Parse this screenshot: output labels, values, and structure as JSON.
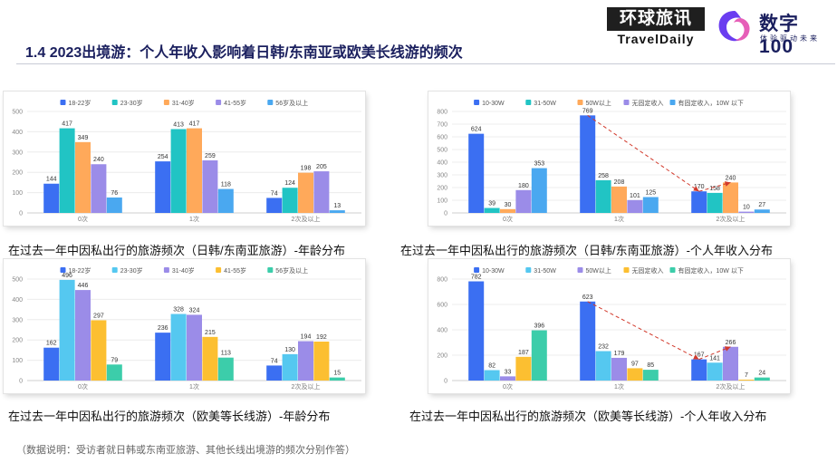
{
  "header": {
    "title": "1.4 2023出境游：个人年收入影响着日韩/东南亚或欧美长线游的频次",
    "logo_tv_cn": "环球旅讯",
    "logo_tv_en": "TravelDaily",
    "logo_sz_main": "数字100",
    "logo_sz_sub": "体验驱动未来"
  },
  "footnote": "（数据说明：受访者就日韩或东南亚旅游、其他长线出境游的频次分别作答）",
  "chart_data": [
    {
      "type": "bar",
      "caption": "在过去一年中因私出行的旅游频次（日韩/东南亚旅游）-年龄分布",
      "categories": [
        "0次",
        "1次",
        "2次及以上"
      ],
      "y_ticks": [
        0,
        100,
        200,
        300,
        400,
        500
      ],
      "ylim": [
        0,
        500
      ],
      "legend_position": "top",
      "series": [
        {
          "name": "18-22岁",
          "color": "#3b6ff2",
          "values": [
            144,
            254,
            74
          ]
        },
        {
          "name": "23-30岁",
          "color": "#21c4c4",
          "values": [
            417,
            413,
            124
          ]
        },
        {
          "name": "31-40岁",
          "color": "#ffa95a",
          "values": [
            349,
            417,
            198
          ]
        },
        {
          "name": "41-55岁",
          "color": "#9b8ce8",
          "values": [
            240,
            259,
            205
          ]
        },
        {
          "name": "56岁及以上",
          "color": "#4aa8f0",
          "values": [
            76,
            118,
            13
          ]
        }
      ]
    },
    {
      "type": "bar",
      "caption": "在过去一年中因私出行的旅游频次（日韩/东南亚旅游）-个人年收入分布",
      "categories": [
        "0次",
        "1次",
        "2次及以上"
      ],
      "y_ticks": [
        0,
        100,
        200,
        300,
        400,
        500,
        600,
        700,
        800
      ],
      "ylim": [
        0,
        800
      ],
      "legend_position": "top",
      "trend_arrows": [
        {
          "from_series": 0,
          "from_cat": 1,
          "to_series": 0,
          "to_cat": 2
        },
        {
          "from_series": 0,
          "from_cat": 2,
          "to_series": 2,
          "to_cat": 2
        }
      ],
      "series": [
        {
          "name": "10-30W",
          "color": "#3b6ff2",
          "values": [
            624,
            769,
            170
          ]
        },
        {
          "name": "31-50W",
          "color": "#21c4c4",
          "values": [
            39,
            258,
            158
          ]
        },
        {
          "name": "50W以上",
          "color": "#ffa95a",
          "values": [
            30,
            208,
            240
          ]
        },
        {
          "name": "无固定收入",
          "color": "#9b8ce8",
          "values": [
            180,
            101,
            10
          ]
        },
        {
          "name": "有固定收入，10W 以下",
          "color": "#4aa8f0",
          "values": [
            353,
            125,
            27
          ]
        }
      ]
    },
    {
      "type": "bar",
      "caption": "在过去一年中因私出行的旅游频次（欧美等长线游）-年龄分布",
      "categories": [
        "0次",
        "1次",
        "2次及以上"
      ],
      "y_ticks": [
        0,
        100,
        200,
        300,
        400,
        500
      ],
      "ylim": [
        0,
        500
      ],
      "legend_position": "top",
      "series": [
        {
          "name": "18-22岁",
          "color": "#3b6ff2",
          "values": [
            162,
            236,
            74
          ]
        },
        {
          "name": "23-30岁",
          "color": "#55c8f0",
          "values": [
            496,
            328,
            130
          ]
        },
        {
          "name": "31-40岁",
          "color": "#9b8ce8",
          "values": [
            446,
            324,
            194
          ]
        },
        {
          "name": "41-55岁",
          "color": "#fcbf31",
          "values": [
            297,
            215,
            192
          ]
        },
        {
          "name": "56岁及以上",
          "color": "#3ccdaa",
          "values": [
            79,
            113,
            15
          ]
        }
      ]
    },
    {
      "type": "bar",
      "caption": "在过去一年中因私出行的旅游频次（欧美等长线游）-个人年收入分布",
      "categories": [
        "0次",
        "1次",
        "2次及以上"
      ],
      "y_ticks": [
        0,
        200,
        400,
        600,
        800
      ],
      "ylim": [
        0,
        800
      ],
      "legend_position": "top",
      "trend_arrows": [
        {
          "from_series": 0,
          "from_cat": 1,
          "to_series": 0,
          "to_cat": 2
        },
        {
          "from_series": 0,
          "from_cat": 2,
          "to_series": 2,
          "to_cat": 2
        }
      ],
      "series": [
        {
          "name": "10-30W",
          "color": "#3b6ff2",
          "values": [
            782,
            623,
            167
          ]
        },
        {
          "name": "31-50W",
          "color": "#55c8f0",
          "values": [
            82,
            232,
            141
          ]
        },
        {
          "name": "50W以上",
          "color": "#9b8ce8",
          "values": [
            33,
            179,
            266
          ]
        },
        {
          "name": "无固定收入",
          "color": "#fcbf31",
          "values": [
            187,
            97,
            7
          ]
        },
        {
          "name": "有固定收入，10W 以下",
          "color": "#3ccdaa",
          "values": [
            396,
            85,
            24
          ]
        }
      ]
    }
  ]
}
